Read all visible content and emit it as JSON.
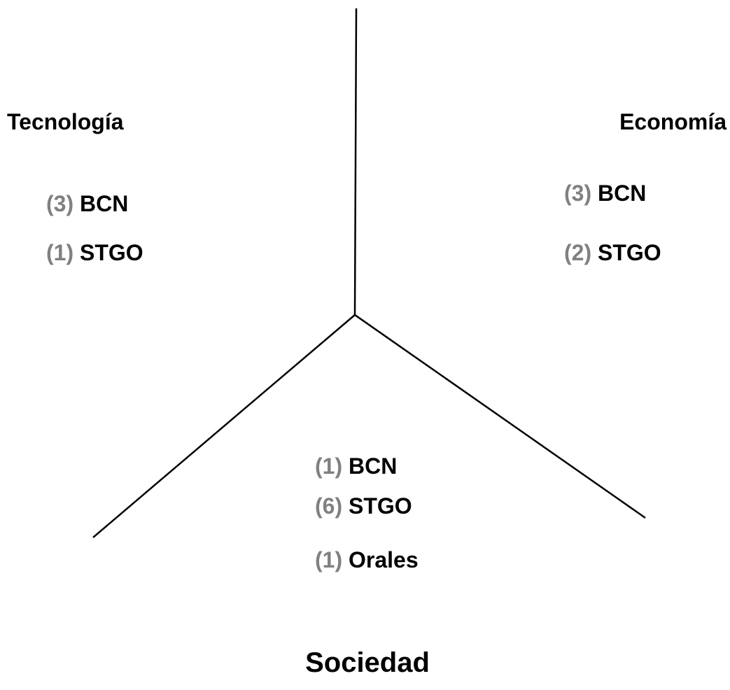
{
  "groups": [
    {
      "title": "Tecnología",
      "items": [
        {
          "count": "(3)",
          "name": "BCN"
        },
        {
          "count": "(1)",
          "name": "STGO"
        }
      ]
    },
    {
      "title": "Economía",
      "items": [
        {
          "count": "(3)",
          "name": "BCN"
        },
        {
          "count": "(2)",
          "name": "STGO"
        }
      ]
    },
    {
      "title": "Sociedad",
      "items": [
        {
          "count": "(1)",
          "name": "BCN"
        },
        {
          "count": "(6)",
          "name": "STGO"
        },
        {
          "count": "(1)",
          "name": "Orales"
        }
      ]
    }
  ]
}
